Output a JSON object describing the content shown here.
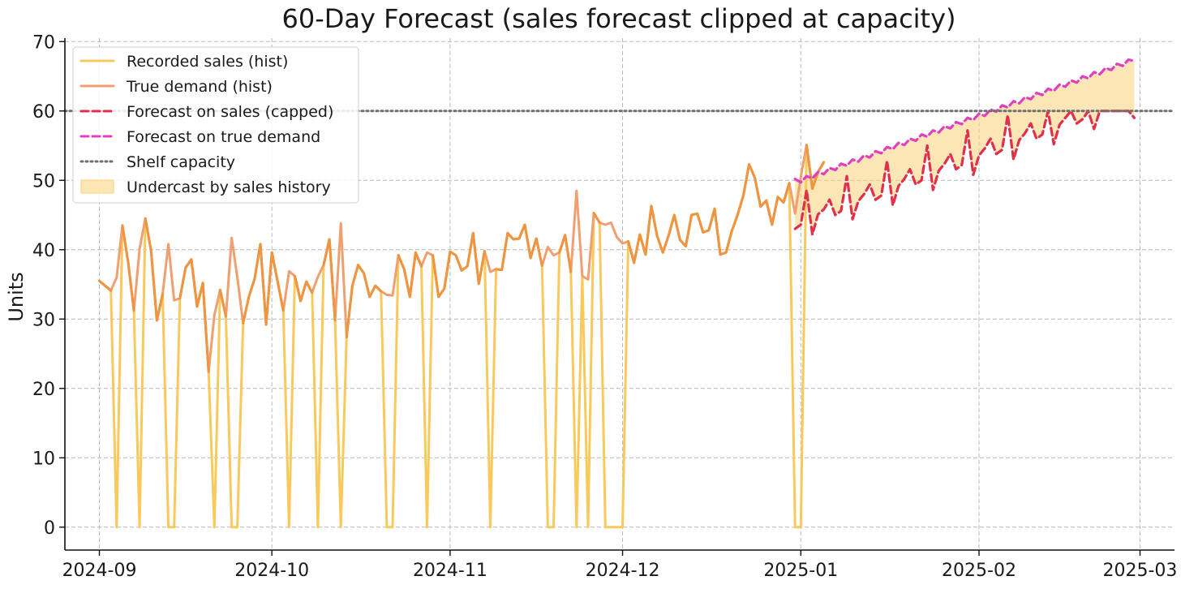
{
  "chart_data": {
    "type": "line",
    "title": "60-Day Forecast (sales forecast clipped at capacity)",
    "xlabel": "",
    "ylabel": "Units",
    "x_range": [
      "2024-08-26",
      "2025-03-07"
    ],
    "ylim": [
      -3.3,
      70.5
    ],
    "y_ticks": [
      0,
      10,
      20,
      30,
      40,
      50,
      60,
      70
    ],
    "x_ticks": [
      "2024-09-01",
      "2024-10-01",
      "2024-11-01",
      "2024-12-01",
      "2025-01-01",
      "2025-02-01",
      "2025-03-01"
    ],
    "x_tick_labels": [
      "2024-09",
      "2024-10",
      "2024-11",
      "2024-12",
      "2025-01",
      "2025-02",
      "2025-03"
    ],
    "grid": true,
    "legend_position": "top-left",
    "capacity": 60,
    "hist_start": "2024-09-01",
    "forecast_start": "2024-12-31",
    "series": [
      {
        "name": "Recorded sales (hist)",
        "style": "solid",
        "color": "#F9C95C",
        "values": [
          35.5,
          34.8,
          34.1,
          0,
          43.5,
          38.2,
          31.2,
          0,
          44.5,
          39.8,
          29.8,
          33.6,
          0,
          0,
          33.0,
          37.4,
          38.6,
          31.8,
          35.2,
          22.4,
          0,
          34.2,
          30.4,
          0,
          0,
          29.4,
          33.2,
          35.8,
          40.8,
          29.2,
          39.6,
          35.4,
          31.2,
          0,
          36.2,
          32.6,
          35.4,
          33.8,
          0,
          37.8,
          41.5,
          29.8,
          0,
          27.4,
          34.8,
          37.8,
          36.6,
          33.2,
          34.8,
          34.0,
          0,
          0,
          39.2,
          37.2,
          33.2,
          39.6,
          37.6,
          0,
          39.2,
          33.2,
          34.4,
          39.7,
          39.2,
          37.0,
          37.6,
          42.4,
          35.1,
          39.8,
          0,
          37.2,
          37.1,
          42.4,
          41.5,
          41.6,
          43.6,
          38.8,
          41.6,
          37.7,
          0,
          0,
          39.6,
          42.1,
          36.8,
          0,
          36.2,
          0,
          45.3,
          43.9,
          0,
          0,
          0,
          0,
          41.2,
          38.1,
          42.2,
          39.3,
          46.3,
          42.0,
          39.6,
          42.0,
          45.0,
          41.4,
          40.5,
          45.0,
          45.2,
          42.5,
          42.8,
          45.9,
          39.3,
          39.6,
          42.7,
          45.0,
          47.8,
          52.3,
          50.4,
          46.2,
          47.1,
          43.6,
          47.6,
          46.8,
          49.6,
          0,
          0,
          55.1,
          48.8,
          51.2,
          52.6
        ]
      },
      {
        "name": "True demand (hist)",
        "style": "solid",
        "color": "#F0A070",
        "values": [
          35.5,
          34.8,
          34.1,
          36.0,
          43.5,
          38.2,
          31.2,
          40.1,
          44.5,
          39.8,
          29.8,
          33.6,
          40.8,
          32.7,
          33.0,
          37.4,
          38.6,
          31.8,
          35.2,
          22.4,
          30.6,
          34.2,
          30.4,
          41.7,
          36.0,
          29.4,
          33.2,
          35.8,
          40.8,
          29.2,
          39.6,
          35.4,
          31.2,
          36.9,
          36.2,
          32.6,
          35.4,
          33.8,
          36.1,
          37.8,
          41.5,
          29.8,
          43.8,
          27.4,
          34.8,
          37.8,
          36.6,
          33.2,
          34.8,
          34.0,
          33.5,
          33.4,
          39.2,
          37.2,
          33.2,
          39.6,
          37.6,
          39.6,
          39.2,
          33.2,
          34.4,
          39.7,
          39.2,
          37.0,
          37.6,
          42.4,
          35.1,
          39.8,
          36.8,
          37.2,
          37.1,
          42.4,
          41.5,
          41.6,
          43.6,
          38.8,
          41.6,
          37.7,
          40.4,
          39.2,
          39.6,
          42.1,
          36.8,
          48.5,
          36.2,
          35.7,
          45.3,
          43.9,
          43.6,
          43.9,
          41.8,
          40.9,
          41.2,
          38.1,
          42.2,
          39.3,
          46.3,
          42.0,
          39.6,
          42.0,
          45.0,
          41.4,
          40.5,
          45.0,
          45.2,
          42.5,
          42.8,
          45.9,
          39.3,
          39.6,
          42.7,
          45.0,
          47.8,
          52.3,
          50.4,
          46.2,
          47.1,
          43.6,
          47.6,
          46.8,
          49.6,
          45.2,
          50.5,
          55.1,
          48.8,
          51.2,
          52.6
        ]
      },
      {
        "name": "Forecast on sales (capped)",
        "style": "dashed",
        "color": "#E0304A",
        "values": [
          43.0,
          43.6,
          48.6,
          42.2,
          45.1,
          45.8,
          47.2,
          45.0,
          45.6,
          50.6,
          44.4,
          47.0,
          48.0,
          49.4,
          47.2,
          47.8,
          52.8,
          46.4,
          49.2,
          50.2,
          51.6,
          49.4,
          50.0,
          55.0,
          48.6,
          51.4,
          52.4,
          53.8,
          51.6,
          52.2,
          57.2,
          50.8,
          53.6,
          54.6,
          56.0,
          53.8,
          54.4,
          59.4,
          53.0,
          55.8,
          56.8,
          58.2,
          56.0,
          56.6,
          60.0,
          55.2,
          58.0,
          59.0,
          60.0,
          58.2,
          58.8,
          60.0,
          57.4,
          60.0,
          60.0,
          60.0,
          60.0,
          60.0,
          60.0,
          59.0
        ]
      },
      {
        "name": "Forecast on true demand",
        "style": "dashed",
        "color": "#E040C0",
        "values": [
          50.2,
          49.7,
          50.6,
          50.3,
          51.2,
          50.9,
          51.8,
          51.5,
          52.4,
          52.1,
          53.0,
          52.7,
          53.6,
          53.3,
          54.2,
          53.9,
          54.8,
          54.5,
          55.4,
          55.1,
          56.0,
          55.7,
          56.6,
          56.3,
          57.2,
          56.9,
          57.8,
          57.5,
          58.4,
          58.1,
          59.0,
          58.7,
          59.6,
          59.3,
          60.2,
          59.9,
          60.8,
          60.5,
          61.4,
          61.1,
          62.0,
          61.7,
          62.6,
          62.3,
          63.2,
          62.9,
          63.8,
          63.5,
          64.4,
          64.1,
          65.0,
          64.7,
          65.6,
          65.3,
          66.2,
          65.9,
          66.8,
          66.5,
          67.4,
          67.2
        ]
      }
    ],
    "capacity_series_name": "Shelf capacity",
    "capacity_color": "#707070",
    "fill_name": "Undercast by sales history",
    "fill_color": "#FCD27A"
  }
}
